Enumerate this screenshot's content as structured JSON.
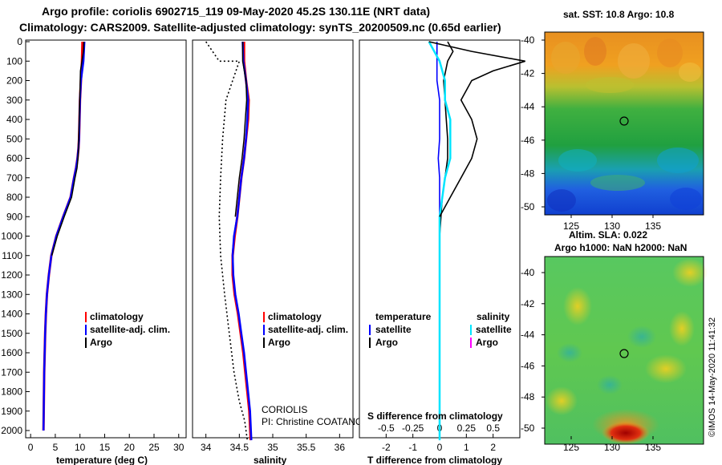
{
  "titles": {
    "line1": "Argo profile: coriolis 6902715_119 09-May-2020 45.2S 130.11E (NRT data)",
    "line2": "Climatology: CARS2009. Satellite-adjusted climatology: synTS_20200509.nc (0.65d earlier)"
  },
  "colors": {
    "climatology": "#ff0000",
    "satellite": "#0000ff",
    "argo": "#000000",
    "salinity_sat": "#00e5ff",
    "salinity_argo": "#ff00ff"
  },
  "depth_axis": {
    "ticks": [
      "0",
      "100",
      "200",
      "300",
      "400",
      "500",
      "600",
      "700",
      "800",
      "900",
      "1000",
      "1100",
      "1200",
      "1300",
      "1400",
      "1500",
      "1600",
      "1700",
      "1800",
      "1900",
      "2000"
    ],
    "ylim": [
      0,
      2050
    ]
  },
  "chart_data": [
    {
      "type": "line",
      "name": "temperature-profile",
      "xlabel": "temperature (deg C)",
      "ylabel": "depth",
      "xlim": [
        -1,
        31.5
      ],
      "xticks": [
        "0",
        "5",
        "10",
        "15",
        "20",
        "25",
        "30"
      ],
      "series": [
        {
          "name": "climatology",
          "color": "#ff0000",
          "x": [
            10.5,
            10.4,
            10.2,
            10.0,
            9.9,
            9.8,
            9.7,
            9.5,
            9.2,
            8.8,
            8.1,
            6.6,
            5.2,
            4.2,
            3.7,
            3.3,
            3.1,
            2.95,
            2.85,
            2.75,
            2.6
          ],
          "y": [
            0,
            100,
            200,
            300,
            400,
            500,
            550,
            600,
            650,
            700,
            800,
            900,
            1000,
            1100,
            1200,
            1300,
            1400,
            1500,
            1600,
            1700,
            2000
          ]
        },
        {
          "name": "satellite-adj. clim.",
          "color": "#0000ff",
          "x": [
            10.9,
            10.7,
            10.2,
            10.0,
            9.9,
            9.8,
            9.7,
            9.5,
            9.2,
            8.8,
            8.1,
            6.6,
            5.2,
            4.2,
            3.7,
            3.3,
            3.1,
            2.95,
            2.85,
            2.75,
            2.6
          ],
          "y": [
            0,
            100,
            200,
            300,
            400,
            500,
            550,
            600,
            650,
            700,
            800,
            900,
            1000,
            1100,
            1200,
            1300,
            1400,
            1500,
            1600,
            1700,
            2000
          ]
        },
        {
          "name": "Argo",
          "color": "#000000",
          "x": [
            10.8,
            10.7,
            10.1,
            10.0,
            9.9,
            9.8,
            9.7,
            9.6,
            9.4,
            9.0,
            8.3,
            6.8,
            5.4,
            4.3
          ],
          "y": [
            0,
            50,
            150,
            250,
            350,
            450,
            550,
            600,
            650,
            700,
            800,
            900,
            1000,
            1100
          ]
        }
      ],
      "legend": [
        "climatology",
        "satellite-adj. clim.",
        "Argo"
      ]
    },
    {
      "type": "line",
      "name": "salinity-profile",
      "xlabel": "salinity",
      "ylabel": "depth",
      "xlim": [
        33.8,
        36.2
      ],
      "xticks": [
        "34",
        "34.5",
        "35",
        "35.5",
        "36"
      ],
      "series": [
        {
          "name": "climatology",
          "color": "#ff0000",
          "x": [
            34.57,
            34.57,
            34.6,
            34.64,
            34.63,
            34.6,
            34.57,
            34.53,
            34.5,
            34.47,
            34.43,
            34.4,
            34.4,
            34.43,
            34.48,
            34.52,
            34.56,
            34.59,
            34.62,
            34.65,
            34.67
          ],
          "y": [
            0,
            100,
            200,
            300,
            400,
            500,
            600,
            700,
            800,
            900,
            1000,
            1100,
            1200,
            1300,
            1400,
            1500,
            1600,
            1700,
            1800,
            1900,
            2050
          ]
        },
        {
          "name": "satellite-adj. clim.",
          "color": "#0000ff",
          "x": [
            34.55,
            34.56,
            34.6,
            34.63,
            34.62,
            34.6,
            34.57,
            34.53,
            34.5,
            34.47,
            34.42,
            34.4,
            34.41,
            34.44,
            34.49,
            34.53,
            34.57,
            34.6,
            34.63,
            34.66,
            34.68
          ],
          "y": [
            0,
            100,
            200,
            300,
            400,
            500,
            600,
            700,
            800,
            900,
            1000,
            1100,
            1200,
            1300,
            1400,
            1500,
            1600,
            1700,
            1800,
            1900,
            2050
          ]
        },
        {
          "name": "Argo",
          "color": "#000000",
          "x": [
            34.55,
            34.55,
            34.6,
            34.61,
            34.59,
            34.57,
            34.54,
            34.5,
            34.47,
            34.44
          ],
          "y": [
            0,
            100,
            200,
            300,
            400,
            500,
            600,
            700,
            800,
            900
          ]
        },
        {
          "name": "dotted-reference",
          "color": "#000000",
          "x": [
            34.0,
            34.2,
            34.5,
            34.4,
            34.3,
            34.25,
            34.22,
            34.2,
            34.22,
            34.28,
            34.35,
            34.42,
            34.5,
            34.58,
            34.62
          ],
          "y": [
            0,
            100,
            100,
            200,
            300,
            500,
            700,
            900,
            1100,
            1300,
            1500,
            1700,
            1850,
            1950,
            2050
          ]
        }
      ],
      "legend": [
        "climatology",
        "satellite-adj. clim.",
        "Argo"
      ],
      "annotation": [
        "CORIOLIS",
        "PI: Christine COATANOAN"
      ]
    },
    {
      "type": "line",
      "name": "difference-profile",
      "xlabel": "T difference from climatology",
      "top_label": "S difference from climatology",
      "ylabel": "depth",
      "xlim": [
        -3,
        3
      ],
      "xticks": [
        "-2",
        "-1",
        "0",
        "1",
        "2"
      ],
      "top_ticks": [
        "-0.5",
        "-0.25",
        "0",
        "0.25",
        "0.5"
      ],
      "series": [
        {
          "name": "temperature satellite",
          "color": "#0000ff",
          "x": [
            -0.1,
            -0.1,
            -0.1,
            0.0,
            0.0,
            0.0,
            -0.05,
            0.0,
            0.0,
            0.0,
            0.0,
            0.0,
            0.0,
            0.0
          ],
          "y": [
            0,
            100,
            200,
            300,
            400,
            500,
            600,
            700,
            800,
            900,
            1000,
            1100,
            1200,
            1400
          ]
        },
        {
          "name": "temperature Argo",
          "color": "#000000",
          "x": [
            0.3,
            0.5,
            0.3,
            0.15,
            0.2,
            0.25,
            0.3,
            0.3,
            0.2,
            0.1,
            0.05,
            0.0,
            0.0,
            0.0
          ],
          "y": [
            0,
            50,
            100,
            200,
            300,
            400,
            500,
            600,
            700,
            800,
            900,
            1000,
            1100,
            1200
          ]
        },
        {
          "name": "salinity satellite",
          "color": "#00e5ff",
          "x": [
            -0.1,
            0.0,
            0.05,
            0.05,
            0.1,
            0.1,
            0.1,
            0.05,
            0.0,
            0.0,
            0.0,
            0.0
          ],
          "y": [
            0,
            100,
            200,
            300,
            400,
            500,
            600,
            700,
            900,
            1100,
            1500,
            2050
          ]
        },
        {
          "name": "salinity Argo",
          "color": "#000000",
          "x": [
            -0.1,
            0.3,
            0.8,
            0.5,
            0.3,
            0.2,
            0.3,
            0.35,
            0.3,
            0.2,
            0.1,
            0.0
          ],
          "y": [
            0,
            50,
            100,
            150,
            200,
            300,
            400,
            500,
            600,
            700,
            800,
            900
          ]
        }
      ],
      "legend_left": {
        "title": "temperature",
        "items": [
          "satellite",
          "Argo"
        ]
      },
      "legend_right": {
        "title": "salinity",
        "items": [
          "satellite",
          "Argo"
        ]
      }
    },
    {
      "type": "heatmap",
      "name": "sst-map",
      "title": "sat. SST: 10.8 Argo: 10.8",
      "xticks": [
        "125",
        "130",
        "135"
      ],
      "yticks": [
        "-40",
        "-42",
        "-44",
        "-46",
        "-48",
        "-50"
      ],
      "marker": {
        "lon": 130.11,
        "lat": -45.2
      }
    },
    {
      "type": "heatmap",
      "name": "sla-map",
      "title_line1": "Altim. SLA: 0.022",
      "title_line2": "Argo h1000: NaN h2000: NaN",
      "xticks": [
        "125",
        "130",
        "135"
      ],
      "yticks": [
        "-40",
        "-42",
        "-44",
        "-46",
        "-48",
        "-50"
      ],
      "marker": {
        "lon": 130.11,
        "lat": -45.2
      }
    }
  ],
  "footer": {
    "stamp": "©IMOS 14-May-2020 11:41:32"
  }
}
